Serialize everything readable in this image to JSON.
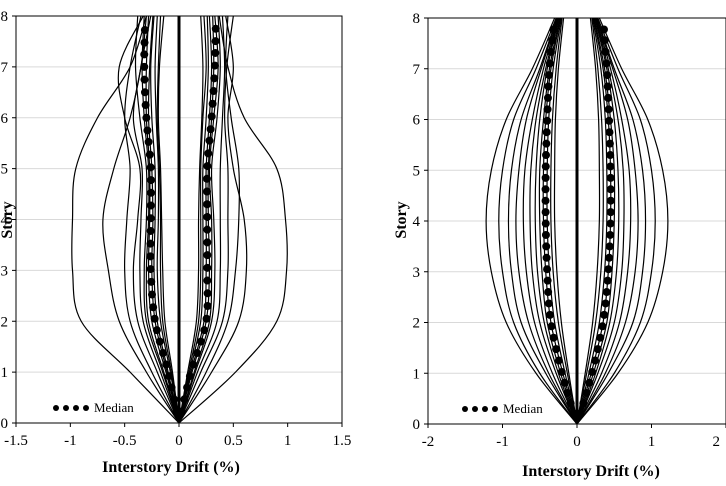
{
  "chart_data": [
    {
      "type": "line",
      "ylabel": "Story",
      "xlabel": "Interstory Drift (%)",
      "xlim": [
        -1.5,
        1.5
      ],
      "ylim": [
        0,
        8
      ],
      "x_ticks": [
        "-1.5",
        "-1",
        "-0.5",
        "0",
        "0.5",
        "1",
        "1.5"
      ],
      "y_ticks": [
        "0",
        "1",
        "2",
        "3",
        "4",
        "5",
        "6",
        "7",
        "8"
      ],
      "grid": "horizontal",
      "legend": {
        "position": "bottom-left",
        "label": "Median"
      },
      "stories": [
        0,
        1,
        2,
        3,
        4,
        5,
        6,
        7,
        8
      ],
      "median": {
        "negative": [
          0,
          -0.1,
          -0.22,
          -0.26,
          -0.26,
          -0.26,
          -0.3,
          -0.32,
          -0.31
        ],
        "positive": [
          0,
          0.11,
          0.25,
          0.26,
          0.26,
          0.26,
          0.3,
          0.33,
          0.34
        ]
      },
      "records": {
        "negative": [
          [
            0,
            -0.45,
            -0.9,
            -0.98,
            -0.98,
            -0.95,
            -0.75,
            -0.45,
            -0.3
          ],
          [
            0,
            -0.3,
            -0.55,
            -0.65,
            -0.7,
            -0.6,
            -0.45,
            -0.35,
            -0.3
          ],
          [
            0,
            -0.25,
            -0.45,
            -0.5,
            -0.48,
            -0.45,
            -0.5,
            -0.45,
            -0.35
          ],
          [
            0,
            -0.2,
            -0.38,
            -0.42,
            -0.38,
            -0.36,
            -0.5,
            -0.55,
            -0.33
          ],
          [
            0,
            -0.17,
            -0.33,
            -0.36,
            -0.35,
            -0.34,
            -0.42,
            -0.35,
            -0.26
          ],
          [
            0,
            -0.15,
            -0.3,
            -0.32,
            -0.3,
            -0.3,
            -0.36,
            -0.4,
            -0.38
          ],
          [
            0,
            -0.14,
            -0.28,
            -0.3,
            -0.28,
            -0.28,
            -0.32,
            -0.34,
            -0.32
          ],
          [
            0,
            -0.12,
            -0.25,
            -0.28,
            -0.27,
            -0.27,
            -0.3,
            -0.3,
            -0.28
          ],
          [
            0,
            -0.11,
            -0.22,
            -0.25,
            -0.24,
            -0.25,
            -0.28,
            -0.27,
            -0.24
          ],
          [
            0,
            -0.1,
            -0.2,
            -0.23,
            -0.22,
            -0.22,
            -0.25,
            -0.26,
            -0.23
          ],
          [
            0,
            -0.08,
            -0.17,
            -0.2,
            -0.19,
            -0.19,
            -0.21,
            -0.22,
            -0.2
          ],
          [
            0,
            -0.07,
            -0.15,
            -0.17,
            -0.17,
            -0.18,
            -0.2,
            -0.19,
            -0.17
          ],
          [
            0,
            -0.06,
            -0.13,
            -0.15,
            -0.16,
            -0.17,
            -0.19,
            -0.18,
            -0.14
          ]
        ],
        "positive": [
          [
            0,
            0.52,
            0.9,
            0.99,
            0.98,
            0.9,
            0.6,
            0.45,
            0.37
          ],
          [
            0,
            0.3,
            0.55,
            0.62,
            0.6,
            0.5,
            0.45,
            0.5,
            0.43
          ],
          [
            0,
            0.25,
            0.45,
            0.52,
            0.55,
            0.55,
            0.48,
            0.43,
            0.45
          ],
          [
            0,
            0.2,
            0.4,
            0.45,
            0.45,
            0.45,
            0.42,
            0.44,
            0.5
          ],
          [
            0,
            0.17,
            0.35,
            0.38,
            0.38,
            0.38,
            0.4,
            0.42,
            0.4
          ],
          [
            0,
            0.15,
            0.3,
            0.33,
            0.32,
            0.3,
            0.35,
            0.38,
            0.36
          ],
          [
            0,
            0.14,
            0.28,
            0.3,
            0.3,
            0.28,
            0.32,
            0.36,
            0.33
          ],
          [
            0,
            0.12,
            0.25,
            0.28,
            0.27,
            0.27,
            0.3,
            0.32,
            0.31
          ],
          [
            0,
            0.11,
            0.23,
            0.25,
            0.25,
            0.25,
            0.28,
            0.3,
            0.28
          ],
          [
            0,
            0.1,
            0.2,
            0.22,
            0.22,
            0.22,
            0.25,
            0.27,
            0.26
          ],
          [
            0,
            0.09,
            0.18,
            0.2,
            0.2,
            0.2,
            0.22,
            0.25,
            0.23
          ],
          [
            0,
            0.08,
            0.16,
            0.18,
            0.18,
            0.19,
            0.21,
            0.22,
            0.2
          ]
        ]
      }
    },
    {
      "type": "line",
      "ylabel": "Story",
      "xlabel": "Interstory Drift (%)",
      "xlim": [
        -2,
        2
      ],
      "ylim": [
        0,
        8
      ],
      "x_ticks": [
        "-2",
        "-1",
        "0",
        "1",
        "2"
      ],
      "y_ticks": [
        "0",
        "1",
        "2",
        "3",
        "4",
        "5",
        "6",
        "7",
        "8"
      ],
      "grid": "horizontal",
      "legend": {
        "position": "bottom-left",
        "label": "Median"
      },
      "stories": [
        0,
        1,
        2,
        3,
        4,
        5,
        6,
        7,
        8
      ],
      "median": {
        "negative": [
          0,
          -0.2,
          -0.35,
          -0.4,
          -0.42,
          -0.42,
          -0.4,
          -0.37,
          -0.3
        ],
        "positive": [
          0,
          0.2,
          0.35,
          0.42,
          0.45,
          0.45,
          0.43,
          0.4,
          0.35
        ]
      },
      "records": {
        "negative": [
          [
            0,
            -0.55,
            -0.95,
            -1.15,
            -1.22,
            -1.15,
            -0.95,
            -0.6,
            -0.3
          ],
          [
            0,
            -0.5,
            -0.85,
            -1.0,
            -1.05,
            -1.0,
            -0.85,
            -0.55,
            -0.28
          ],
          [
            0,
            -0.42,
            -0.75,
            -0.88,
            -0.92,
            -0.88,
            -0.75,
            -0.5,
            -0.27
          ],
          [
            0,
            -0.38,
            -0.65,
            -0.78,
            -0.82,
            -0.78,
            -0.68,
            -0.48,
            -0.26
          ],
          [
            0,
            -0.33,
            -0.57,
            -0.68,
            -0.72,
            -0.7,
            -0.6,
            -0.45,
            -0.25
          ],
          [
            0,
            -0.28,
            -0.5,
            -0.6,
            -0.63,
            -0.62,
            -0.55,
            -0.42,
            -0.25
          ],
          [
            0,
            -0.25,
            -0.44,
            -0.53,
            -0.56,
            -0.55,
            -0.5,
            -0.4,
            -0.24
          ],
          [
            0,
            -0.22,
            -0.4,
            -0.47,
            -0.5,
            -0.5,
            -0.45,
            -0.37,
            -0.23
          ],
          [
            0,
            -0.19,
            -0.35,
            -0.42,
            -0.45,
            -0.45,
            -0.42,
            -0.35,
            -0.22
          ],
          [
            0,
            -0.16,
            -0.3,
            -0.37,
            -0.4,
            -0.4,
            -0.38,
            -0.32,
            -0.21
          ],
          [
            0,
            -0.13,
            -0.25,
            -0.32,
            -0.35,
            -0.35,
            -0.33,
            -0.28,
            -0.2
          ],
          [
            0,
            -0.11,
            -0.21,
            -0.27,
            -0.3,
            -0.3,
            -0.29,
            -0.25,
            -0.18
          ]
        ],
        "positive": [
          [
            0,
            0.55,
            0.95,
            1.15,
            1.22,
            1.15,
            0.95,
            0.6,
            0.3
          ],
          [
            0,
            0.5,
            0.85,
            1.0,
            1.05,
            1.0,
            0.85,
            0.55,
            0.28
          ],
          [
            0,
            0.42,
            0.75,
            0.88,
            0.92,
            0.88,
            0.75,
            0.5,
            0.27
          ],
          [
            0,
            0.38,
            0.65,
            0.78,
            0.82,
            0.78,
            0.68,
            0.48,
            0.26
          ],
          [
            0,
            0.33,
            0.57,
            0.68,
            0.72,
            0.7,
            0.6,
            0.45,
            0.25
          ],
          [
            0,
            0.28,
            0.5,
            0.6,
            0.63,
            0.62,
            0.55,
            0.42,
            0.25
          ],
          [
            0,
            0.25,
            0.44,
            0.53,
            0.56,
            0.55,
            0.5,
            0.4,
            0.24
          ],
          [
            0,
            0.22,
            0.4,
            0.47,
            0.5,
            0.5,
            0.45,
            0.37,
            0.23
          ],
          [
            0,
            0.19,
            0.35,
            0.42,
            0.45,
            0.45,
            0.42,
            0.35,
            0.22
          ],
          [
            0,
            0.16,
            0.3,
            0.37,
            0.4,
            0.4,
            0.38,
            0.32,
            0.21
          ],
          [
            0,
            0.13,
            0.25,
            0.32,
            0.35,
            0.35,
            0.33,
            0.28,
            0.2
          ],
          [
            0,
            0.11,
            0.21,
            0.27,
            0.3,
            0.3,
            0.29,
            0.25,
            0.18
          ]
        ]
      }
    }
  ]
}
